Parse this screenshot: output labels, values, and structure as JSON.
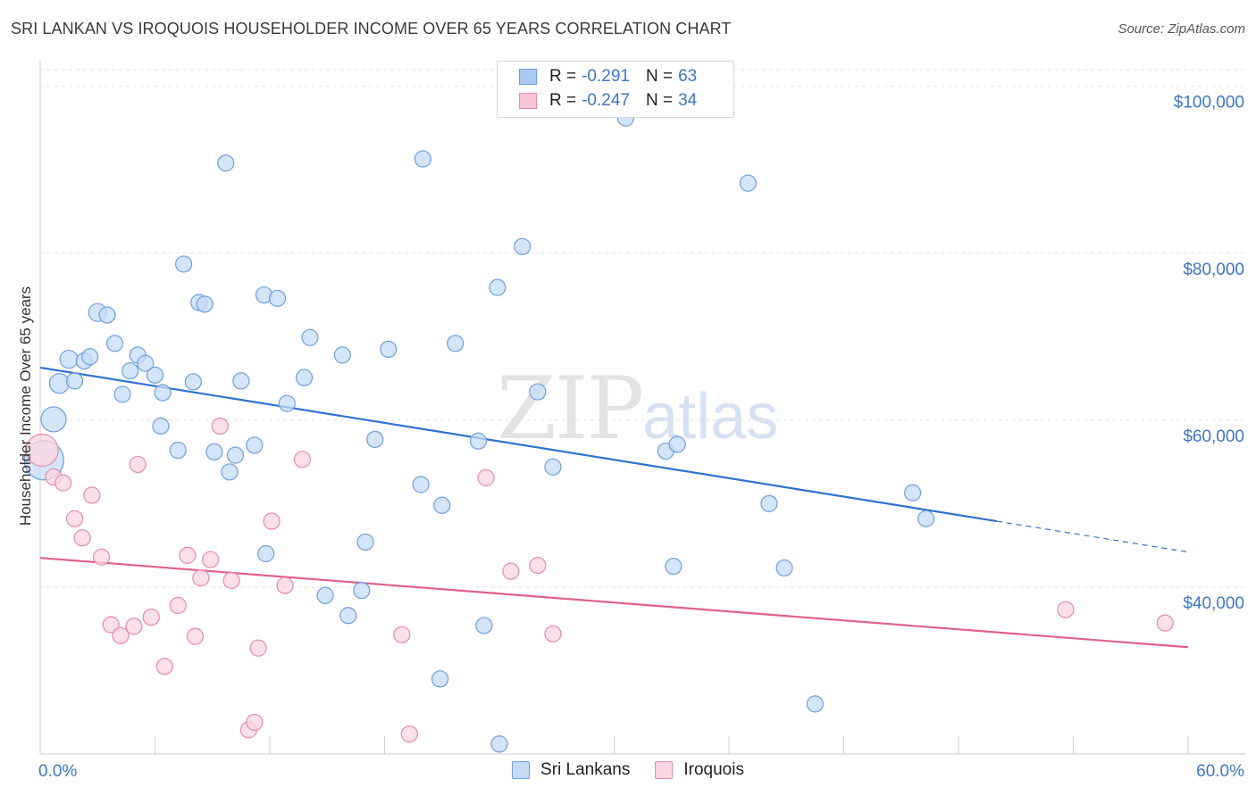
{
  "title": "SRI LANKAN VS IROQUOIS HOUSEHOLDER INCOME OVER 65 YEARS CORRELATION CHART",
  "source": "Source: ZipAtlas.com",
  "watermark": {
    "zip": "ZIP",
    "atlas": "atlas"
  },
  "legend_top": [
    {
      "r_label": "R =",
      "r_value": "-0.291",
      "n_label": "N =",
      "n_value": "63",
      "color": "#a9c8f0",
      "border": "#6e9fe0"
    },
    {
      "r_label": "R =",
      "r_value": "-0.247",
      "n_label": "N =",
      "n_value": "34",
      "color": "#f7c4d4",
      "border": "#e88aa8"
    }
  ],
  "legend_bottom": [
    {
      "label": "Sri Lankans",
      "color": "#c6dbf7",
      "border": "#6e9fe0"
    },
    {
      "label": "Iroquois",
      "color": "#fbd6e2",
      "border": "#e88aa8"
    }
  ],
  "chart_data": {
    "type": "scatter",
    "title": "SRI LANKAN VS IROQUOIS HOUSEHOLDER INCOME OVER 65 YEARS CORRELATION CHART",
    "xlabel": "",
    "ylabel": "Householder Income Over 65 years",
    "xlim": [
      0,
      60
    ],
    "ylim": [
      20000,
      102000
    ],
    "x_tick_labels": [
      "0.0%",
      "60.0%"
    ],
    "y_ticks": [
      40000,
      60000,
      80000,
      100000
    ],
    "y_tick_labels": [
      "$40,000",
      "$60,000",
      "$80,000",
      "$100,000"
    ],
    "grid": true,
    "legend_position": "top-center",
    "series": [
      {
        "name": "Sri Lankans",
        "color": "#6e9fe0",
        "fill": "#c6dbf7",
        "line_color": "#2e72d2",
        "trend": {
          "x": [
            0,
            50
          ],
          "y": [
            66300,
            47900
          ],
          "dash_to_x": 60,
          "dash_y": 44200
        },
        "points": [
          [
            0.2,
            55200,
            22
          ],
          [
            0.7,
            60100,
            14
          ],
          [
            1.0,
            64400,
            11
          ],
          [
            1.5,
            67300,
            10
          ],
          [
            1.8,
            64700,
            9
          ],
          [
            2.3,
            67100,
            9
          ],
          [
            2.6,
            67600,
            9
          ],
          [
            3.0,
            72900,
            10
          ],
          [
            3.5,
            72600,
            9
          ],
          [
            3.9,
            69200,
            9
          ],
          [
            4.3,
            63100,
            9
          ],
          [
            4.7,
            65900,
            9
          ],
          [
            5.1,
            67800,
            9
          ],
          [
            5.5,
            66800,
            9
          ],
          [
            6.0,
            65400,
            9
          ],
          [
            6.4,
            63300,
            9
          ],
          [
            6.3,
            59300,
            9
          ],
          [
            7.2,
            56400,
            9
          ],
          [
            7.5,
            78700,
            9
          ],
          [
            8.0,
            64600,
            9
          ],
          [
            8.3,
            74100,
            9
          ],
          [
            8.6,
            73900,
            9
          ],
          [
            9.1,
            56200,
            9
          ],
          [
            9.7,
            90800,
            9
          ],
          [
            9.9,
            53800,
            9
          ],
          [
            10.2,
            55800,
            9
          ],
          [
            10.5,
            64700,
            9
          ],
          [
            11.2,
            57000,
            9
          ],
          [
            11.7,
            75000,
            9
          ],
          [
            12.4,
            74600,
            9
          ],
          [
            11.8,
            44000,
            9
          ],
          [
            12.9,
            62000,
            9
          ],
          [
            13.8,
            65100,
            9
          ],
          [
            14.1,
            69900,
            9
          ],
          [
            14.9,
            39000,
            9
          ],
          [
            15.8,
            67800,
            9
          ],
          [
            16.1,
            36600,
            9
          ],
          [
            16.8,
            39600,
            9
          ],
          [
            17.0,
            45400,
            9
          ],
          [
            17.5,
            57700,
            9
          ],
          [
            18.2,
            68500,
            9
          ],
          [
            19.9,
            52300,
            9
          ],
          [
            20.0,
            91300,
            9
          ],
          [
            20.9,
            29000,
            9
          ],
          [
            21.0,
            49800,
            9
          ],
          [
            21.7,
            69200,
            9
          ],
          [
            22.9,
            57500,
            9
          ],
          [
            23.2,
            35400,
            9
          ],
          [
            23.9,
            75900,
            9
          ],
          [
            24.0,
            21200,
            9
          ],
          [
            25.2,
            80800,
            9
          ],
          [
            26.0,
            63400,
            9
          ],
          [
            26.8,
            54400,
            9
          ],
          [
            30.6,
            96200,
            9
          ],
          [
            32.7,
            56300,
            9
          ],
          [
            33.3,
            57100,
            9
          ],
          [
            33.1,
            42500,
            9
          ],
          [
            37.0,
            88400,
            9
          ],
          [
            38.1,
            50000,
            9
          ],
          [
            38.9,
            42300,
            9
          ],
          [
            40.5,
            26000,
            9
          ],
          [
            45.6,
            51300,
            9
          ],
          [
            46.3,
            48200,
            9
          ]
        ]
      },
      {
        "name": "Iroquois",
        "color": "#e88aa8",
        "fill": "#fbd6e2",
        "line_color": "#e0608c",
        "trend": {
          "x": [
            0,
            60
          ],
          "y": [
            43500,
            32800
          ]
        },
        "points": [
          [
            0.1,
            56400,
            18
          ],
          [
            0.7,
            53200,
            9
          ],
          [
            1.2,
            52500,
            9
          ],
          [
            1.8,
            48200,
            9
          ],
          [
            2.2,
            45900,
            9
          ],
          [
            2.7,
            51000,
            9
          ],
          [
            3.2,
            43600,
            9
          ],
          [
            3.7,
            35500,
            9
          ],
          [
            4.2,
            34200,
            9
          ],
          [
            4.9,
            35300,
            9
          ],
          [
            5.1,
            54700,
            9
          ],
          [
            5.8,
            36400,
            9
          ],
          [
            6.5,
            30500,
            9
          ],
          [
            7.2,
            37800,
            9
          ],
          [
            7.7,
            43800,
            9
          ],
          [
            8.1,
            34100,
            9
          ],
          [
            8.4,
            41100,
            9
          ],
          [
            8.9,
            43300,
            9
          ],
          [
            9.4,
            59300,
            9
          ],
          [
            10.0,
            40800,
            9
          ],
          [
            10.9,
            22900,
            9
          ],
          [
            11.2,
            23800,
            9
          ],
          [
            11.4,
            32700,
            9
          ],
          [
            12.1,
            47900,
            9
          ],
          [
            12.8,
            40200,
            9
          ],
          [
            13.7,
            55300,
            9
          ],
          [
            18.9,
            34300,
            9
          ],
          [
            19.3,
            22400,
            9
          ],
          [
            23.3,
            53100,
            9
          ],
          [
            24.6,
            41900,
            9
          ],
          [
            26.0,
            42600,
            9
          ],
          [
            26.8,
            34400,
            9
          ],
          [
            53.6,
            37300,
            9
          ],
          [
            58.8,
            35700,
            9
          ]
        ]
      }
    ]
  }
}
